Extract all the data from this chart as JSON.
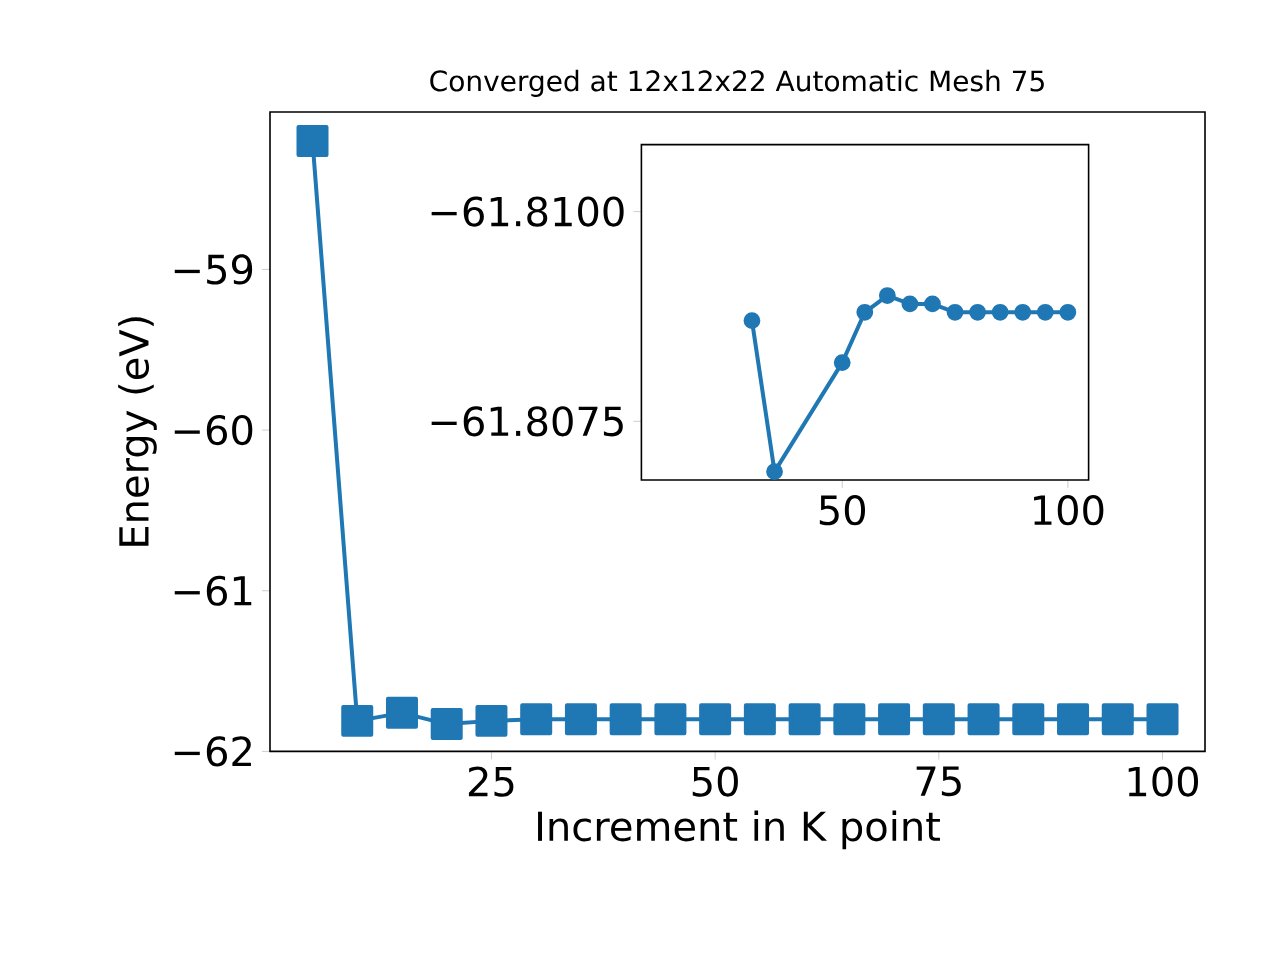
{
  "chart_data": [
    {
      "type": "line",
      "title": "Converged at 12x12x22 Automatic Mesh 75",
      "xlabel": "Increment in K point",
      "ylabel": "Energy (eV)",
      "color": "#1f77b4",
      "marker": "square",
      "line_style": "solid",
      "x": [
        5,
        10,
        15,
        20,
        25,
        30,
        35,
        40,
        45,
        50,
        55,
        60,
        65,
        70,
        75,
        80,
        85,
        90,
        95,
        100
      ],
      "values": [
        -58.2,
        -61.81,
        -61.76,
        -61.83,
        -61.81,
        -61.8,
        -61.8,
        -61.8,
        -61.8,
        -61.8,
        -61.8,
        -61.8,
        -61.8,
        -61.8,
        -61.8,
        -61.8,
        -61.8,
        -61.8,
        -61.8,
        -61.8
      ],
      "xlim": [
        0.25,
        104.75
      ],
      "ylim": [
        -62.0,
        -58.02
      ],
      "xticks": [
        25,
        50,
        75,
        100
      ],
      "yticks": [
        {
          "value": -62,
          "label": "−62"
        },
        {
          "value": -61,
          "label": "−61"
        },
        {
          "value": -60,
          "label": "−60"
        },
        {
          "value": -59,
          "label": "−59"
        }
      ]
    },
    {
      "type": "line",
      "color": "#1f77b4",
      "marker": "circle",
      "line_style": "solid",
      "x": [
        30,
        35,
        50,
        55,
        60,
        65,
        70,
        75,
        80,
        85,
        90,
        95,
        100
      ],
      "values": [
        -61.8087,
        -61.8069,
        -61.8082,
        -61.8088,
        -61.809,
        -61.8089,
        -61.8089,
        -61.8088,
        -61.8088,
        -61.8088,
        -61.8088,
        -61.8088,
        -61.8088
      ],
      "xlim": [
        5.5,
        104.6
      ],
      "ylim": [
        -61.8068,
        -61.8108
      ],
      "xticks": [
        50,
        100
      ],
      "yticks": [
        {
          "value": -61.81,
          "label": "−61.8100"
        },
        {
          "value": -61.8075,
          "label": "−61.8075"
        }
      ]
    }
  ]
}
